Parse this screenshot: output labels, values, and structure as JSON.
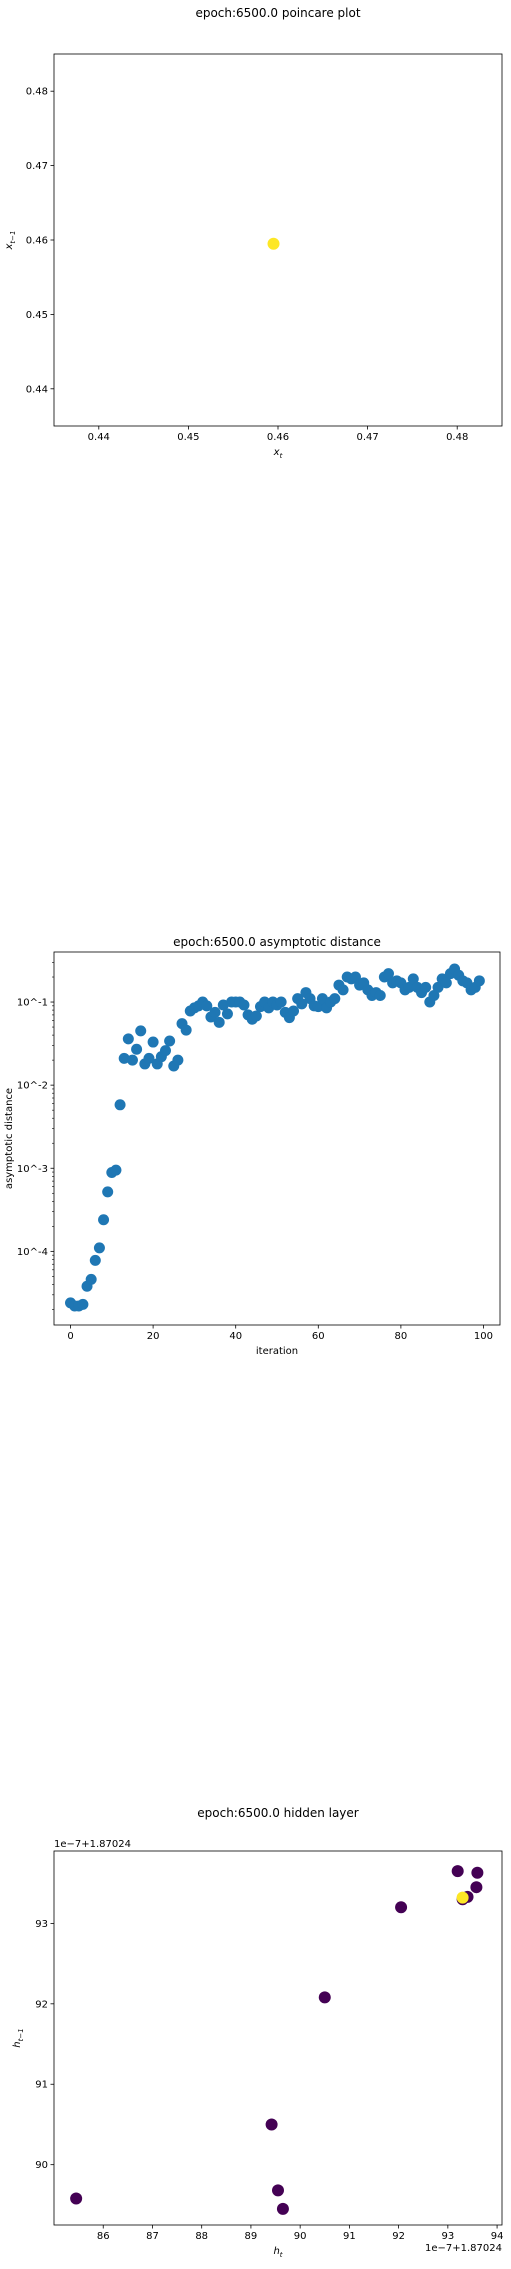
{
  "chart_data": [
    {
      "type": "scatter",
      "title": "epoch:6500.0 poincare plot",
      "xlabel": "x_t",
      "ylabel": "x_{t-1}",
      "xlim": [
        0.435,
        0.485
      ],
      "ylim": [
        0.435,
        0.485
      ],
      "xticks": [
        "0.44",
        "0.45",
        "0.46",
        "0.47",
        "0.48"
      ],
      "yticks": [
        "0.44",
        "0.45",
        "0.46",
        "0.47",
        "0.48"
      ],
      "points": [
        {
          "x": 0.4595,
          "y": 0.4595
        }
      ],
      "point_color": "#fde725",
      "grid": false
    },
    {
      "type": "scatter",
      "title": "epoch:6500.0 asymptotic distance",
      "xlabel": "iteration",
      "ylabel": "asymptotic distance",
      "yscale": "log",
      "xlim": [
        -4,
        104
      ],
      "ylim": [
        1.3e-05,
        0.4
      ],
      "xticks": [
        "0",
        "20",
        "40",
        "60",
        "80",
        "100"
      ],
      "yticks": [
        "10^-4",
        "10^-3",
        "10^-2",
        "10^-1"
      ],
      "series": [
        {
          "color": "#1f77b4",
          "x": [
            0,
            1,
            2,
            3,
            4,
            5,
            6,
            7,
            8,
            9,
            10,
            11,
            12,
            13,
            14,
            15,
            16,
            17,
            18,
            19,
            20,
            21,
            22,
            23,
            24,
            25,
            26,
            27,
            28,
            29,
            30,
            31,
            32,
            33,
            34,
            35,
            36,
            37,
            38,
            39,
            40,
            41,
            42,
            43,
            44,
            45,
            46,
            47,
            48,
            49,
            50,
            51,
            52,
            53,
            54,
            55,
            56,
            57,
            58,
            59,
            60,
            61,
            62,
            63,
            64,
            65,
            66,
            67,
            68,
            69,
            70,
            71,
            72,
            73,
            74,
            75,
            76,
            77,
            78,
            79,
            80,
            81,
            82,
            83,
            84,
            85,
            86,
            87,
            88,
            89,
            90,
            91,
            92,
            93,
            94,
            95,
            96,
            97,
            98,
            99
          ],
          "y": [
            2.4e-05,
            2.2e-05,
            2.2e-05,
            2.3e-05,
            3.8e-05,
            4.6e-05,
            7.8e-05,
            0.00011,
            0.00024,
            0.00052,
            0.00089,
            0.00095,
            0.0058,
            0.021,
            0.036,
            0.02,
            0.027,
            0.045,
            0.018,
            0.021,
            0.033,
            0.018,
            0.022,
            0.026,
            0.034,
            0.017,
            0.02,
            0.055,
            0.046,
            0.078,
            0.085,
            0.09,
            0.1,
            0.09,
            0.066,
            0.075,
            0.057,
            0.092,
            0.072,
            0.1,
            0.1,
            0.1,
            0.092,
            0.07,
            0.062,
            0.068,
            0.088,
            0.1,
            0.085,
            0.1,
            0.092,
            0.1,
            0.075,
            0.065,
            0.078,
            0.11,
            0.095,
            0.13,
            0.11,
            0.09,
            0.088,
            0.11,
            0.085,
            0.1,
            0.11,
            0.16,
            0.14,
            0.2,
            0.19,
            0.2,
            0.16,
            0.17,
            0.14,
            0.12,
            0.13,
            0.12,
            0.2,
            0.22,
            0.17,
            0.18,
            0.17,
            0.14,
            0.15,
            0.19,
            0.15,
            0.13,
            0.15,
            0.1,
            0.12,
            0.15,
            0.19,
            0.17,
            0.22,
            0.25,
            0.21,
            0.18,
            0.17,
            0.14,
            0.15,
            0.18
          ]
        }
      ],
      "grid": false
    },
    {
      "type": "scatter",
      "title": "epoch:6500.0 hidden layer",
      "xlabel": "h_t",
      "ylabel": "h_{t-1}",
      "x_offset_label": "1e−7+1.87024",
      "y_offset_label": "1e−7+1.87024",
      "xlim": [
        85.0,
        94.1
      ],
      "ylim": [
        89.25,
        93.9
      ],
      "xticks": [
        "86",
        "87",
        "88",
        "89",
        "90",
        "91",
        "92",
        "93",
        "94"
      ],
      "yticks": [
        "90",
        "91",
        "92",
        "93"
      ],
      "colors": {
        "early": "#440154",
        "late": "#fde725"
      },
      "points": [
        {
          "x": 85.45,
          "y": 89.58,
          "c": "early"
        },
        {
          "x": 89.42,
          "y": 90.5,
          "c": "early"
        },
        {
          "x": 89.55,
          "y": 89.68,
          "c": "early"
        },
        {
          "x": 89.65,
          "y": 89.45,
          "c": "early"
        },
        {
          "x": 90.5,
          "y": 92.08,
          "c": "early"
        },
        {
          "x": 92.05,
          "y": 93.2,
          "c": "early"
        },
        {
          "x": 93.2,
          "y": 93.65,
          "c": "early"
        },
        {
          "x": 93.6,
          "y": 93.63,
          "c": "early"
        },
        {
          "x": 93.58,
          "y": 93.45,
          "c": "early"
        },
        {
          "x": 93.4,
          "y": 93.33,
          "c": "early"
        },
        {
          "x": 93.3,
          "y": 93.3,
          "c": "early"
        },
        {
          "x": 93.3,
          "y": 93.32,
          "c": "late"
        }
      ],
      "grid": false
    }
  ]
}
